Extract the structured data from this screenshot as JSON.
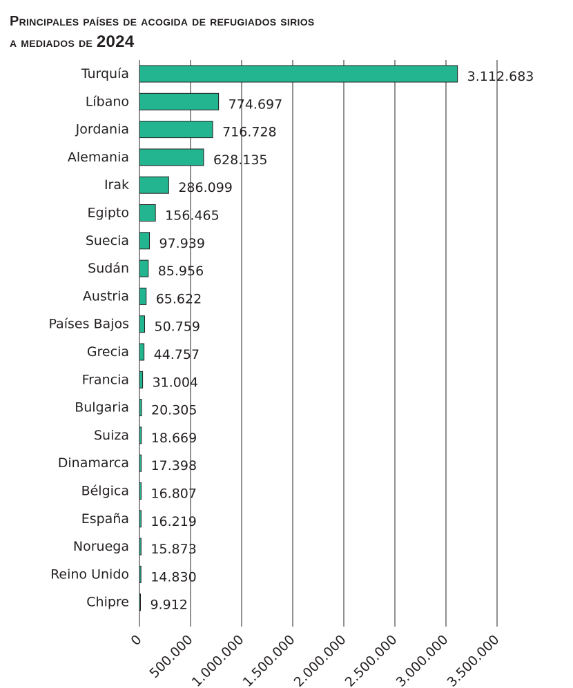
{
  "chart_data": {
    "type": "bar",
    "orientation": "horizontal",
    "title_line1": "Principales países de acogida de refugiados sirios",
    "title_line2_prefix": "a mediados de",
    "title_year": "2024",
    "categories": [
      "Turquía",
      "Líbano",
      "Jordania",
      "Alemania",
      "Irak",
      "Egipto",
      "Suecia",
      "Sudán",
      "Austria",
      "Países Bajos",
      "Grecia",
      "Francia",
      "Bulgaria",
      "Suiza",
      "Dinamarca",
      "Bélgica",
      "España",
      "Noruega",
      "Reino Unido",
      "Chipre"
    ],
    "values": [
      3112683,
      774697,
      716728,
      628135,
      286099,
      156465,
      97939,
      85956,
      65622,
      50759,
      44757,
      31004,
      20305,
      18669,
      17398,
      16807,
      16219,
      15873,
      14830,
      9912
    ],
    "value_labels": [
      "3.112.683",
      "774.697",
      "716.728",
      "628.135",
      "286.099",
      "156.465",
      "97.939",
      "85.956",
      "65.622",
      "50.759",
      "44.757",
      "31.004",
      "20.305",
      "18.669",
      "17.398",
      "16.807",
      "16.219",
      "15.873",
      "14.830",
      "9.912"
    ],
    "xlim": [
      0,
      3500000
    ],
    "xticks": [
      0,
      500000,
      1000000,
      1500000,
      2000000,
      2500000,
      3000000,
      3500000
    ],
    "xtick_labels": [
      "0",
      "500.000",
      "1.000.000",
      "1.500.000",
      "2.000.000",
      "2.500.000",
      "3.000.000",
      "3.500.000"
    ],
    "grid": "vertical",
    "xlabel": "",
    "ylabel": "",
    "bar_color": "#22b58f"
  }
}
